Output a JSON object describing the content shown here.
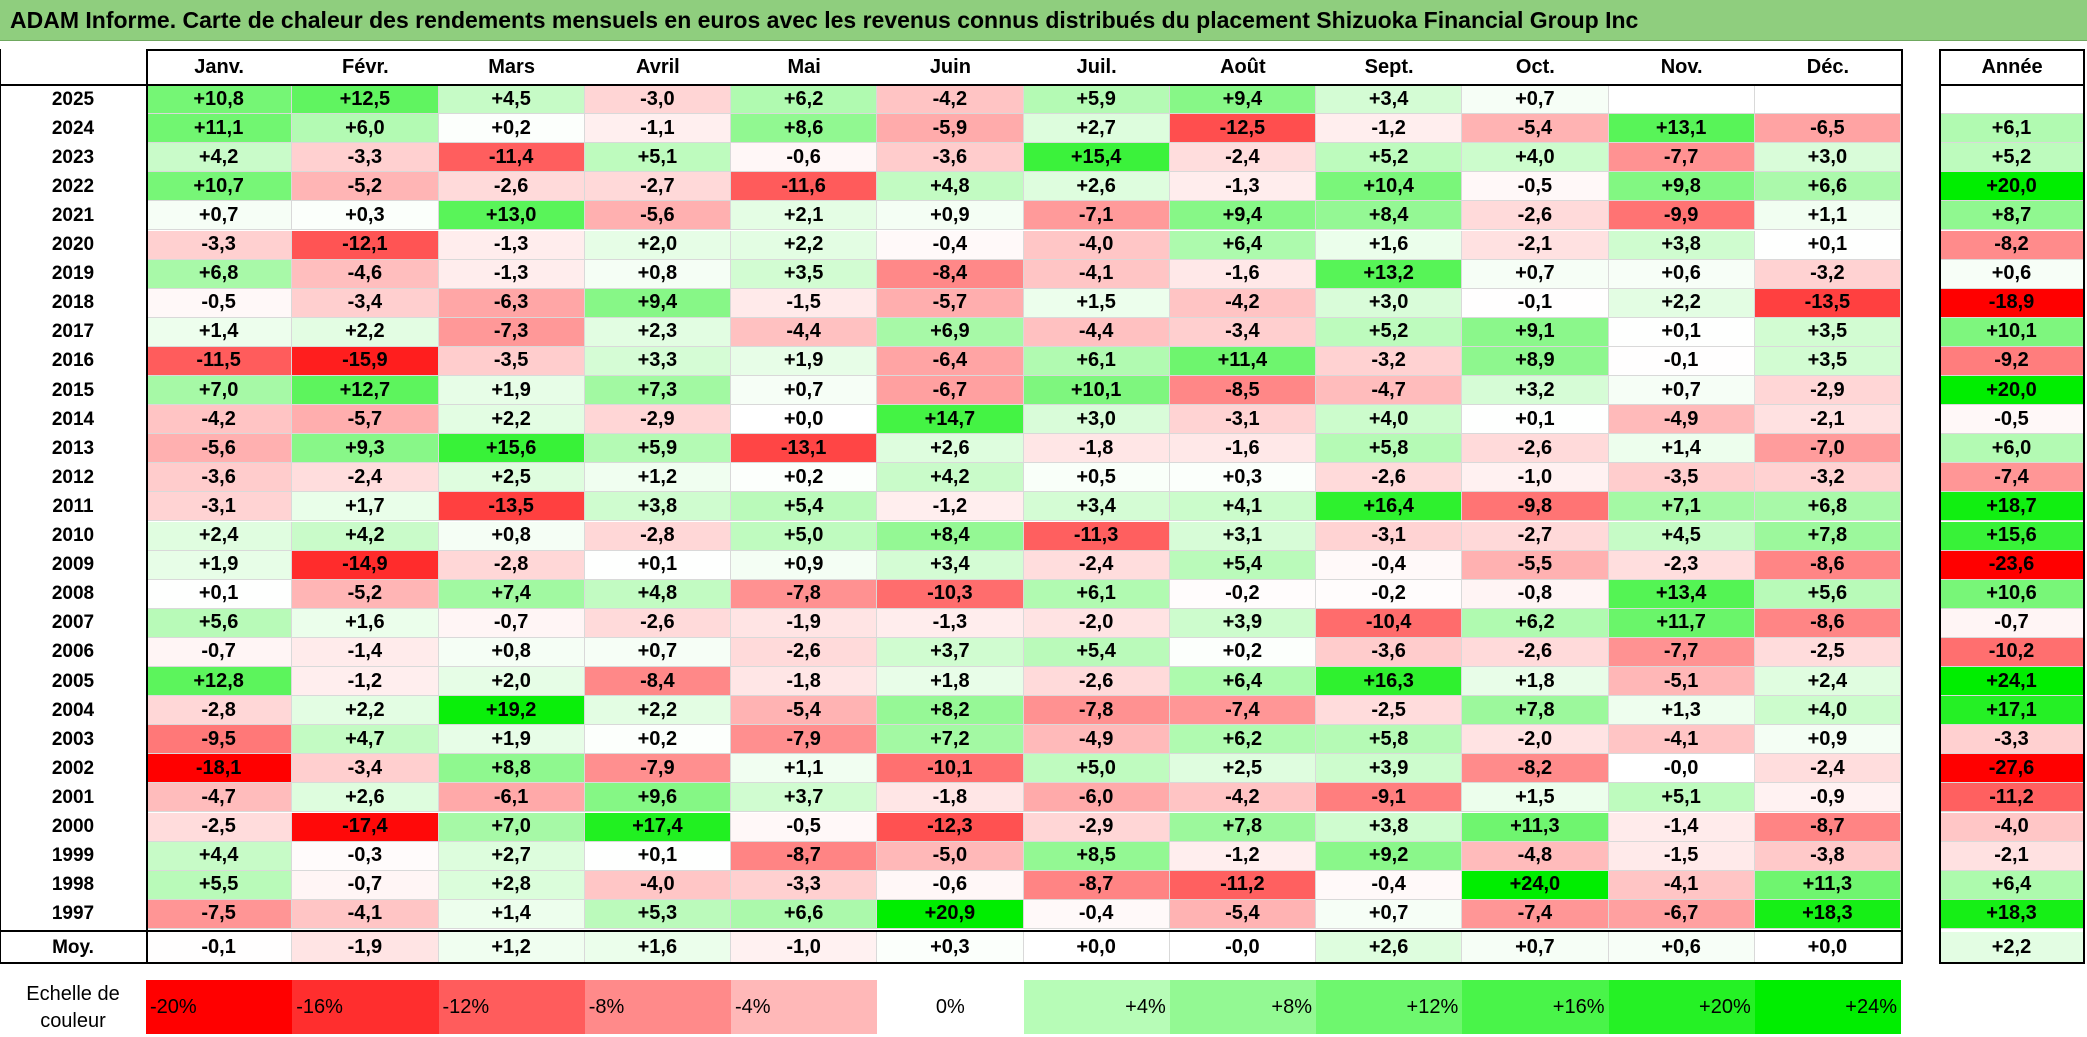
{
  "title": "ADAM Informe. Carte de chaleur des rendements mensuels en euros avec les revenus connus distribués du placement Shizuoka Financial Group Inc",
  "chart_data": {
    "type": "heatmap",
    "title": "ADAM Informe. Carte de chaleur des rendements mensuels en euros avec les revenus connus distribués du placement Shizuoka Financial Group Inc",
    "columns": [
      "Janv.",
      "Févr.",
      "Mars",
      "Avril",
      "Mai",
      "Juin",
      "Juil.",
      "Août",
      "Sept.",
      "Oct.",
      "Nov.",
      "Déc."
    ],
    "annual_header": "Année",
    "rows": [
      {
        "year": "2025",
        "months": [
          "+10,8",
          "+12,5",
          "+4,5",
          "-3,0",
          "+6,2",
          "-4,2",
          "+5,9",
          "+9,4",
          "+3,4",
          "+0,7",
          "",
          ""
        ],
        "annual": ""
      },
      {
        "year": "2024",
        "months": [
          "+11,1",
          "+6,0",
          "+0,2",
          "-1,1",
          "+8,6",
          "-5,9",
          "+2,7",
          "-12,5",
          "-1,2",
          "-5,4",
          "+13,1",
          "-6,5"
        ],
        "annual": "+6,1"
      },
      {
        "year": "2023",
        "months": [
          "+4,2",
          "-3,3",
          "-11,4",
          "+5,1",
          "-0,6",
          "-3,6",
          "+15,4",
          "-2,4",
          "+5,2",
          "+4,0",
          "-7,7",
          "+3,0"
        ],
        "annual": "+5,2"
      },
      {
        "year": "2022",
        "months": [
          "+10,7",
          "-5,2",
          "-2,6",
          "-2,7",
          "-11,6",
          "+4,8",
          "+2,6",
          "-1,3",
          "+10,4",
          "-0,5",
          "+9,8",
          "+6,6"
        ],
        "annual": "+20,0"
      },
      {
        "year": "2021",
        "months": [
          "+0,7",
          "+0,3",
          "+13,0",
          "-5,6",
          "+2,1",
          "+0,9",
          "-7,1",
          "+9,4",
          "+8,4",
          "-2,6",
          "-9,9",
          "+1,1"
        ],
        "annual": "+8,7"
      },
      {
        "year": "2020",
        "months": [
          "-3,3",
          "-12,1",
          "-1,3",
          "+2,0",
          "+2,2",
          "-0,4",
          "-4,0",
          "+6,4",
          "+1,6",
          "-2,1",
          "+3,8",
          "+0,1"
        ],
        "annual": "-8,2"
      },
      {
        "year": "2019",
        "months": [
          "+6,8",
          "-4,6",
          "-1,3",
          "+0,8",
          "+3,5",
          "-8,4",
          "-4,1",
          "-1,6",
          "+13,2",
          "+0,7",
          "+0,6",
          "-3,2"
        ],
        "annual": "+0,6"
      },
      {
        "year": "2018",
        "months": [
          "-0,5",
          "-3,4",
          "-6,3",
          "+9,4",
          "-1,5",
          "-5,7",
          "+1,5",
          "-4,2",
          "+3,0",
          "-0,1",
          "+2,2",
          "-13,5"
        ],
        "annual": "-18,9"
      },
      {
        "year": "2017",
        "months": [
          "+1,4",
          "+2,2",
          "-7,3",
          "+2,3",
          "-4,4",
          "+6,9",
          "-4,4",
          "-3,4",
          "+5,2",
          "+9,1",
          "+0,1",
          "+3,5"
        ],
        "annual": "+10,1"
      },
      {
        "year": "2016",
        "months": [
          "-11,5",
          "-15,9",
          "-3,5",
          "+3,3",
          "+1,9",
          "-6,4",
          "+6,1",
          "+11,4",
          "-3,2",
          "+8,9",
          "-0,1",
          "+3,5"
        ],
        "annual": "-9,2"
      },
      {
        "year": "2015",
        "months": [
          "+7,0",
          "+12,7",
          "+1,9",
          "+7,3",
          "+0,7",
          "-6,7",
          "+10,1",
          "-8,5",
          "-4,7",
          "+3,2",
          "+0,7",
          "-2,9"
        ],
        "annual": "+20,0"
      },
      {
        "year": "2014",
        "months": [
          "-4,2",
          "-5,7",
          "+2,2",
          "-2,9",
          "+0,0",
          "+14,7",
          "+3,0",
          "-3,1",
          "+4,0",
          "+0,1",
          "-4,9",
          "-2,1"
        ],
        "annual": "-0,5"
      },
      {
        "year": "2013",
        "months": [
          "-5,6",
          "+9,3",
          "+15,6",
          "+5,9",
          "-13,1",
          "+2,6",
          "-1,8",
          "-1,6",
          "+5,8",
          "-2,6",
          "+1,4",
          "-7,0"
        ],
        "annual": "+6,0"
      },
      {
        "year": "2012",
        "months": [
          "-3,6",
          "-2,4",
          "+2,5",
          "+1,2",
          "+0,2",
          "+4,2",
          "+0,5",
          "+0,3",
          "-2,6",
          "-1,0",
          "-3,5",
          "-3,2"
        ],
        "annual": "-7,4"
      },
      {
        "year": "2011",
        "months": [
          "-3,1",
          "+1,7",
          "-13,5",
          "+3,8",
          "+5,4",
          "-1,2",
          "+3,4",
          "+4,1",
          "+16,4",
          "-9,8",
          "+7,1",
          "+6,8"
        ],
        "annual": "+18,7"
      },
      {
        "year": "2010",
        "months": [
          "+2,4",
          "+4,2",
          "+0,8",
          "-2,8",
          "+5,0",
          "+8,4",
          "-11,3",
          "+3,1",
          "-3,1",
          "-2,7",
          "+4,5",
          "+7,8"
        ],
        "annual": "+15,6"
      },
      {
        "year": "2009",
        "months": [
          "+1,9",
          "-14,9",
          "-2,8",
          "+0,1",
          "+0,9",
          "+3,4",
          "-2,4",
          "+5,4",
          "-0,4",
          "-5,5",
          "-2,3",
          "-8,6"
        ],
        "annual": "-23,6"
      },
      {
        "year": "2008",
        "months": [
          "+0,1",
          "-5,2",
          "+7,4",
          "+4,8",
          "-7,8",
          "-10,3",
          "+6,1",
          "-0,2",
          "-0,2",
          "-0,8",
          "+13,4",
          "+5,6"
        ],
        "annual": "+10,6"
      },
      {
        "year": "2007",
        "months": [
          "+5,6",
          "+1,6",
          "-0,7",
          "-2,6",
          "-1,9",
          "-1,3",
          "-2,0",
          "+3,9",
          "-10,4",
          "+6,2",
          "+11,7",
          "-8,6"
        ],
        "annual": "-0,7"
      },
      {
        "year": "2006",
        "months": [
          "-0,7",
          "-1,4",
          "+0,8",
          "+0,7",
          "-2,6",
          "+3,7",
          "+5,4",
          "+0,2",
          "-3,6",
          "-2,6",
          "-7,7",
          "-2,5"
        ],
        "annual": "-10,2"
      },
      {
        "year": "2005",
        "months": [
          "+12,8",
          "-1,2",
          "+2,0",
          "-8,4",
          "-1,8",
          "+1,8",
          "-2,6",
          "+6,4",
          "+16,3",
          "+1,8",
          "-5,1",
          "+2,4"
        ],
        "annual": "+24,1"
      },
      {
        "year": "2004",
        "months": [
          "-2,8",
          "+2,2",
          "+19,2",
          "+2,2",
          "-5,4",
          "+8,2",
          "-7,8",
          "-7,4",
          "-2,5",
          "+7,8",
          "+1,3",
          "+4,0"
        ],
        "annual": "+17,1"
      },
      {
        "year": "2003",
        "months": [
          "-9,5",
          "+4,7",
          "+1,9",
          "+0,2",
          "-7,9",
          "+7,2",
          "-4,9",
          "+6,2",
          "+5,8",
          "-2,0",
          "-4,1",
          "+0,9"
        ],
        "annual": "-3,3"
      },
      {
        "year": "2002",
        "months": [
          "-18,1",
          "-3,4",
          "+8,8",
          "-7,9",
          "+1,1",
          "-10,1",
          "+5,0",
          "+2,5",
          "+3,9",
          "-8,2",
          "-0,0",
          "-2,4"
        ],
        "annual": "-27,6"
      },
      {
        "year": "2001",
        "months": [
          "-4,7",
          "+2,6",
          "-6,1",
          "+9,6",
          "+3,7",
          "-1,8",
          "-6,0",
          "-4,2",
          "-9,1",
          "+1,5",
          "+5,1",
          "-0,9"
        ],
        "annual": "-11,2"
      },
      {
        "year": "2000",
        "months": [
          "-2,5",
          "-17,4",
          "+7,0",
          "+17,4",
          "-0,5",
          "-12,3",
          "-2,9",
          "+7,8",
          "+3,8",
          "+11,3",
          "-1,4",
          "-8,7"
        ],
        "annual": "-4,0"
      },
      {
        "year": "1999",
        "months": [
          "+4,4",
          "-0,3",
          "+2,7",
          "+0,1",
          "-8,7",
          "-5,0",
          "+8,5",
          "-1,2",
          "+9,2",
          "-4,8",
          "-1,5",
          "-3,8"
        ],
        "annual": "-2,1"
      },
      {
        "year": "1998",
        "months": [
          "+5,5",
          "-0,7",
          "+2,8",
          "-4,0",
          "-3,3",
          "-0,6",
          "-8,7",
          "-11,2",
          "-0,4",
          "+24,0",
          "-4,1",
          "+11,3"
        ],
        "annual": "+6,4"
      },
      {
        "year": "1997",
        "months": [
          "-7,5",
          "-4,1",
          "+1,4",
          "+5,3",
          "+6,6",
          "+20,9",
          "-0,4",
          "-5,4",
          "+0,7",
          "-7,4",
          "-6,7",
          "+18,3"
        ],
        "annual": "+18,3"
      }
    ],
    "average": {
      "label": "Moy.",
      "months": [
        "-0,1",
        "-1,9",
        "+1,2",
        "+1,6",
        "-1,0",
        "+0,3",
        "+0,0",
        "-0,0",
        "+2,6",
        "+0,7",
        "+0,6",
        "+0,0"
      ],
      "annual": "+2,2"
    },
    "color_scale": {
      "label": "Echelle de couleur",
      "steps": [
        "-20%",
        "-16%",
        "-12%",
        "-8%",
        "-4%",
        "0%",
        "+4%",
        "+8%",
        "+12%",
        "+16%",
        "+20%",
        "+24%"
      ],
      "negative_color": "#ff0000",
      "neutral_color": "#ffffff",
      "positive_color": "#00ee00"
    }
  }
}
